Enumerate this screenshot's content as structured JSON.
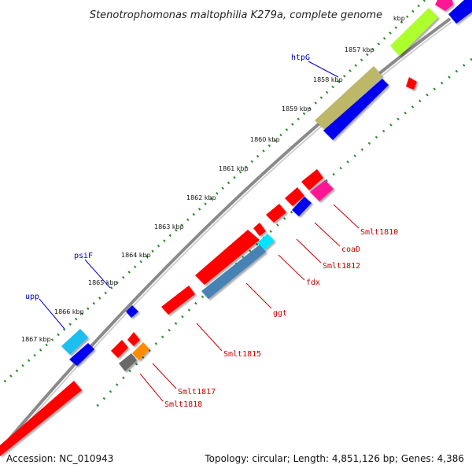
{
  "title": "Stenotrophomonas maltophilia K279a, complete genome",
  "footer": {
    "accession": "Accession: NC_010943",
    "topology": "Topology: circular; Length: 4,851,126 bp; Genes: 4,386"
  },
  "colors": {
    "red_gene": "#ff0000",
    "blue_gene": "#0000ee",
    "steelblue_gene": "#4682b4",
    "cyan_gene": "#00e5ff",
    "light_cyan_gene": "#1fbfee",
    "khaki_gene": "#bdb76b",
    "green_gene": "#adff2f",
    "pink_gene": "#ff1493",
    "orange_gene": "#ff8c00",
    "gray_gene": "#696969",
    "backbone": "#888888",
    "tick_dots": "#2a8a2a",
    "label_blue": "#0000cc",
    "label_red": "#cc0000"
  },
  "ticks": [
    "1857 kbp",
    "1858 kbp",
    "1859 kbp",
    "1860 kbp",
    "1861 kbp",
    "1862 kbp",
    "1863 kbp",
    "1864 kbp",
    "1865 kbp",
    "1866 kbp",
    "1867 kbp",
    "kbp"
  ],
  "gene_labels": {
    "htpG": "htpG",
    "psiF": "psiF",
    "upp": "upp",
    "Smlt1810": "Smlt1810",
    "coaD": "coaD",
    "Smlt1812": "Smlt1812",
    "fdx": "fdx",
    "ggt": "ggt",
    "Smlt1815": "Smlt1815",
    "Smlt1817": "Smlt1817",
    "Smlt1818": "Smlt1818"
  }
}
